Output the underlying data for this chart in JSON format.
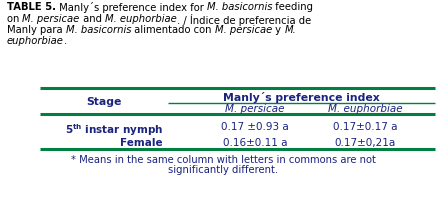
{
  "fig_w": 4.46,
  "fig_h": 2.04,
  "dpi": 100,
  "bg_color": "#ffffff",
  "green_color": "#008040",
  "caption_color": "#000000",
  "table_text_color": "#1a237e",
  "caption_lines": [
    [
      "bold",
      "TABLE 5."
    ],
    [
      "normal",
      " Manly´s preference index for "
    ],
    [
      "italic",
      "M. basicornis"
    ],
    [
      "normal",
      " feeding on "
    ],
    [
      "italic",
      "M. persicae"
    ],
    [
      "normal",
      " and "
    ],
    [
      "italic",
      "M. euphorbiae"
    ],
    [
      "normal",
      ". / Índice de preferencia de Manly para "
    ],
    [
      "italic",
      "M. basicornis"
    ],
    [
      "normal",
      " alimentado con "
    ],
    [
      "italic",
      "M. persicae"
    ],
    [
      "normal",
      " y "
    ],
    [
      "italic",
      "M. euphorbiae"
    ],
    [
      "normal",
      "."
    ]
  ],
  "stage_header": "Stage",
  "manly_header": "Manly´s preference index",
  "sub_col1": "M. persicae",
  "sub_col2": "M. euphorbiae",
  "row1_label": "5",
  "row1_super": "th",
  "row1_rest": " instar nymph",
  "row1_val1": "0.17 ±0.93 a",
  "row1_val2": "0.17±0.17 a",
  "row2_label": "Female",
  "row2_val1": "0.16±0.11 a",
  "row2_val2": "0.17±0,21a",
  "footnote_line1": "* Means in the same column with letters in commons are not",
  "footnote_line2": "significantly different.",
  "caption_fontsize": 7.2,
  "table_fontsize": 7.5,
  "header_fontsize": 7.8,
  "footnote_fontsize": 7.2
}
